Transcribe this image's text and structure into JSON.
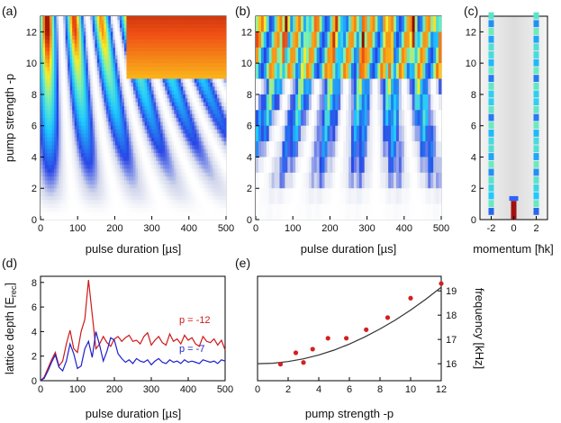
{
  "panels": [
    {
      "id": "a",
      "label": "(a)",
      "type": "heatmap",
      "xlabel": "pulse duration [µs]",
      "ylabel": "pump strength  -p",
      "xticks": [
        0,
        100,
        200,
        300,
        400,
        500
      ],
      "yticks": [
        0,
        2,
        4,
        6,
        8,
        10,
        12
      ],
      "xlim": [
        0,
        500
      ],
      "ylim": [
        0,
        13
      ]
    },
    {
      "id": "b",
      "label": "(b)",
      "type": "heatmap",
      "xlabel": "pulse duration [µs]",
      "ylabel": "",
      "xticks": [
        0,
        100,
        200,
        300,
        400,
        500
      ],
      "yticks": [
        0,
        2,
        4,
        6,
        8,
        10,
        12
      ],
      "xlim": [
        0,
        500
      ],
      "ylim": [
        0,
        13
      ]
    },
    {
      "id": "c",
      "label": "(c)",
      "type": "heatmap",
      "xlabel": "momentum [ħk]",
      "ylabel": "",
      "xticks": [
        -2,
        0,
        2
      ],
      "yticks": [
        0,
        2,
        4,
        6,
        8,
        10,
        12
      ],
      "xlim": [
        -3,
        3
      ],
      "ylim": [
        0,
        13
      ]
    }
  ],
  "chart_data": [
    {
      "type": "line",
      "label": "(d)",
      "xlabel": "pulse duration [µs]",
      "ylabel_main": "lattice depth [E",
      "ylabel_sub": "rec",
      "ylabel_close": "]",
      "xlim": [
        0,
        500
      ],
      "ylim": [
        0,
        8.5
      ],
      "xticks": [
        0,
        100,
        200,
        300,
        400,
        500
      ],
      "yticks": [
        0,
        2,
        4,
        6,
        8
      ],
      "series": [
        {
          "name": "p = -12",
          "color": "#cc1a1a",
          "x": [
            0,
            10,
            20,
            30,
            40,
            50,
            60,
            70,
            80,
            90,
            100,
            110,
            120,
            130,
            140,
            150,
            160,
            170,
            180,
            190,
            200,
            210,
            220,
            230,
            240,
            250,
            260,
            270,
            280,
            290,
            300,
            310,
            320,
            330,
            340,
            350,
            360,
            370,
            380,
            390,
            400,
            410,
            420,
            430,
            440,
            450,
            460,
            470,
            480,
            490,
            500
          ],
          "y": [
            0,
            0.3,
            1.0,
            1.7,
            2.3,
            1.2,
            1.6,
            3.0,
            4.1,
            2.6,
            2.3,
            4.0,
            5.0,
            8.2,
            5.4,
            2.6,
            3.0,
            3.6,
            3.1,
            2.8,
            3.4,
            3.6,
            3.2,
            3.5,
            3.7,
            3.2,
            3.3,
            3.0,
            3.6,
            3.9,
            2.9,
            3.3,
            3.6,
            3.1,
            2.9,
            3.8,
            3.2,
            3.4,
            3.0,
            3.7,
            3.3,
            3.5,
            3.0,
            2.8,
            3.6,
            3.2,
            3.1,
            3.4,
            2.9,
            3.3,
            2.5
          ]
        },
        {
          "name": "p = -7",
          "color": "#1f1fcc",
          "x": [
            0,
            10,
            20,
            30,
            40,
            50,
            60,
            70,
            80,
            90,
            100,
            110,
            120,
            130,
            140,
            150,
            160,
            170,
            180,
            190,
            200,
            210,
            220,
            230,
            240,
            250,
            260,
            270,
            280,
            290,
            300,
            310,
            320,
            330,
            340,
            350,
            360,
            370,
            380,
            390,
            400,
            410,
            420,
            430,
            440,
            450,
            460,
            470,
            480,
            490,
            500
          ],
          "y": [
            0,
            0.2,
            0.8,
            1.5,
            2.1,
            1.1,
            0.8,
            1.6,
            3.0,
            2.2,
            1.0,
            1.2,
            2.6,
            3.2,
            1.9,
            4.0,
            2.9,
            1.6,
            2.4,
            3.5,
            3.3,
            2.2,
            1.8,
            1.5,
            1.7,
            1.4,
            1.8,
            1.6,
            1.5,
            1.7,
            1.3,
            1.6,
            1.8,
            1.5,
            1.4,
            1.7,
            1.5,
            1.6,
            1.4,
            1.7,
            1.5,
            1.6,
            1.5,
            1.4,
            1.7,
            1.6,
            1.5,
            1.6,
            1.4,
            1.7,
            1.6
          ]
        }
      ]
    },
    {
      "type": "scatter",
      "label": "(e)",
      "xlabel": "pump strength  -p",
      "ylabel": "frequency [kHz]",
      "xlim": [
        0,
        12
      ],
      "ylim": [
        15.3,
        19.6
      ],
      "xticks": [
        0,
        2,
        4,
        6,
        8,
        10,
        12
      ],
      "yticks": [
        16,
        17,
        18,
        19
      ],
      "points": {
        "x": [
          1.5,
          2.5,
          3.0,
          3.6,
          4.6,
          5.8,
          7.1,
          8.5,
          10.0,
          12.0
        ],
        "y": [
          15.98,
          16.45,
          16.05,
          16.6,
          17.05,
          17.05,
          17.4,
          17.9,
          18.7,
          19.3
        ],
        "color": "#d42020"
      },
      "fit": {
        "x": [
          0,
          1,
          2,
          3,
          4,
          5,
          6,
          7,
          8,
          9,
          10,
          11,
          12
        ],
        "y": [
          16.0,
          16.02,
          16.09,
          16.2,
          16.36,
          16.56,
          16.81,
          17.1,
          17.43,
          17.8,
          18.21,
          18.66,
          19.15
        ],
        "color": "#333333"
      }
    }
  ]
}
